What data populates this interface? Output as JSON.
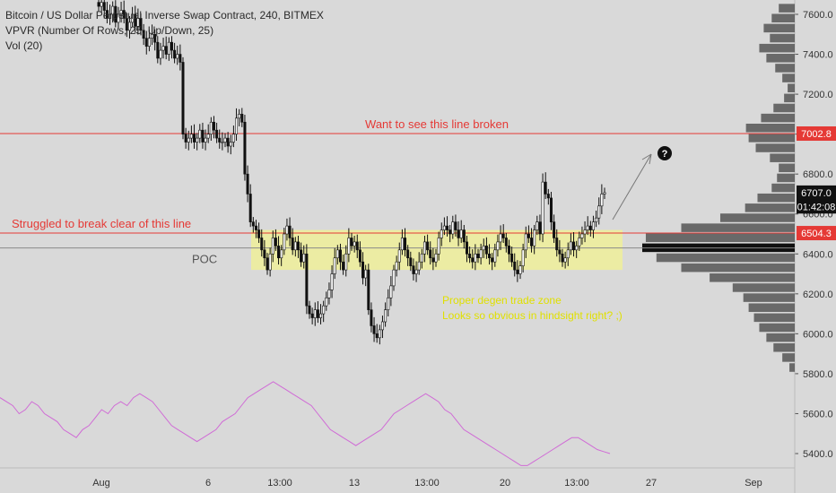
{
  "header": {
    "title": "Bitcoin / US Dollar Perpetual Inverse Swap Contract, 240, BITMEX",
    "indicator_vpvr": "VPVR (Number Of Rows, 25, Up/Down, 25)",
    "indicator_vol": "Vol (20)"
  },
  "colors": {
    "background": "#d9d9d9",
    "candle": "#111111",
    "resistance_line": "#e53935",
    "poc_line": "#8a8a8a",
    "zone_fill": "#eeee99",
    "zone_text": "#e0e000",
    "volume_profile": "#555555",
    "volume_profile_poc": "#111111",
    "oscillator": "#d06bd6",
    "price_label_red": "#e53935",
    "price_label_dark": "#111111"
  },
  "chart_data": {
    "type": "candlestick",
    "price_axis": {
      "ticks": [
        "7600.0",
        "7400.0",
        "7200.0",
        "7000.0",
        "6800.0",
        "6600.0",
        "6400.0",
        "6200.0",
        "6000.0",
        "5800.0",
        "5600.0",
        "5400.0"
      ],
      "range": [
        5350,
        7650
      ]
    },
    "time_axis": {
      "ticks": [
        "Aug",
        "6",
        "13:00",
        "13",
        "13:00",
        "20",
        "13:00",
        "27",
        "Sep"
      ]
    },
    "price_labels": [
      {
        "text": "7002.8",
        "value": 7002.8,
        "style": "red"
      },
      {
        "text": "6707.0",
        "value": 6707.0,
        "style": "dark"
      },
      {
        "text": "01:42:08",
        "value": 6638,
        "style": "dark"
      },
      {
        "text": "6504.3",
        "value": 6504.3,
        "style": "red"
      }
    ],
    "annotations": {
      "line_text": "Want to see this line broken",
      "struggle_text": "Struggled to break clear of this line",
      "poc_label": "POC",
      "zone_text_1": "Proper degen trade zone",
      "zone_text_2": "Looks so obvious in hindsight right? ;)",
      "question_mark": "?"
    },
    "levels": {
      "resistance": 7002.8,
      "support": 6504.3,
      "poc": 6430,
      "zone": [
        6320,
        6520
      ]
    },
    "candles_close": [
      7640,
      7660,
      7620,
      7580,
      7600,
      7640,
      7560,
      7600,
      7620,
      7580,
      7520,
      7560,
      7600,
      7540,
      7580,
      7520,
      7480,
      7440,
      7480,
      7500,
      7460,
      7380,
      7420,
      7440,
      7400,
      7460,
      7420,
      7380,
      7400,
      7360,
      7000,
      6960,
      6980,
      7000,
      6960,
      6980,
      7020,
      6960,
      6980,
      7000,
      7060,
      7020,
      6980,
      6960,
      6960,
      6980,
      6940,
      6960,
      7000,
      7080,
      7100,
      7060,
      6800,
      6700,
      6560,
      6540,
      6520,
      6480,
      6420,
      6380,
      6320,
      6400,
      6480,
      6440,
      6380,
      6420,
      6500,
      6540,
      6480,
      6420,
      6460,
      6420,
      6360,
      6400,
      6140,
      6100,
      6080,
      6120,
      6080,
      6100,
      6140,
      6180,
      6220,
      6300,
      6380,
      6420,
      6360,
      6320,
      6400,
      6480,
      6440,
      6460,
      6420,
      6360,
      6280,
      6320,
      6120,
      6040,
      6000,
      5980,
      6020,
      6060,
      6120,
      6180,
      6240,
      6320,
      6360,
      6420,
      6480,
      6420,
      6380,
      6340,
      6300,
      6320,
      6360,
      6400,
      6460,
      6420,
      6380,
      6360,
      6400,
      6480,
      6520,
      6540,
      6520,
      6500,
      6560,
      6520,
      6480,
      6520,
      6460,
      6400,
      6380,
      6360,
      6400,
      6380,
      6420,
      6440,
      6400,
      6380,
      6360,
      6420,
      6460,
      6500,
      6480,
      6440,
      6400,
      6360,
      6320,
      6300,
      6340,
      6420,
      6500,
      6480,
      6440,
      6520,
      6560,
      6500,
      6760,
      6700,
      6680,
      6560,
      6480,
      6420,
      6400,
      6360,
      6380,
      6420,
      6460,
      6420,
      6440,
      6480,
      6500,
      6520,
      6540,
      6520,
      6560,
      6580,
      6640,
      6700,
      6707
    ],
    "volume_profile": {
      "rows_price": [
        7630,
        7580,
        7530,
        7480,
        7430,
        7380,
        7330,
        7280,
        7230,
        7180,
        7130,
        7080,
        7030,
        6980,
        6930,
        6880,
        6830,
        6780,
        6730,
        6680,
        6630,
        6580,
        6530,
        6480,
        6430,
        6380,
        6330,
        6280,
        6230,
        6180,
        6130,
        6080,
        6030,
        5980,
        5930,
        5880,
        5830
      ],
      "rows_volume": [
        18,
        26,
        35,
        28,
        40,
        32,
        22,
        14,
        8,
        12,
        24,
        38,
        55,
        52,
        44,
        28,
        18,
        20,
        26,
        42,
        56,
        84,
        128,
        168,
        172,
        156,
        128,
        96,
        70,
        58,
        52,
        46,
        40,
        32,
        24,
        14,
        6
      ]
    },
    "oscillator": [
      5680,
      5660,
      5640,
      5600,
      5620,
      5660,
      5640,
      5600,
      5580,
      5560,
      5520,
      5500,
      5480,
      5520,
      5540,
      5580,
      5620,
      5600,
      5640,
      5660,
      5640,
      5680,
      5700,
      5680,
      5660,
      5620,
      5580,
      5540,
      5520,
      5500,
      5480,
      5460,
      5480,
      5500,
      5520,
      5560,
      5580,
      5600,
      5640,
      5680,
      5700,
      5720,
      5740,
      5760,
      5740,
      5720,
      5700,
      5680,
      5660,
      5640,
      5600,
      5560,
      5520,
      5500,
      5480,
      5460,
      5440,
      5460,
      5480,
      5500,
      5520,
      5560,
      5600,
      5620,
      5640,
      5660,
      5680,
      5700,
      5680,
      5660,
      5620,
      5600,
      5560,
      5520,
      5500,
      5480,
      5460,
      5440,
      5420,
      5400,
      5380,
      5360,
      5340,
      5340,
      5360,
      5380,
      5400,
      5420,
      5440,
      5460,
      5480,
      5480,
      5460,
      5440,
      5420,
      5410,
      5400
    ]
  }
}
